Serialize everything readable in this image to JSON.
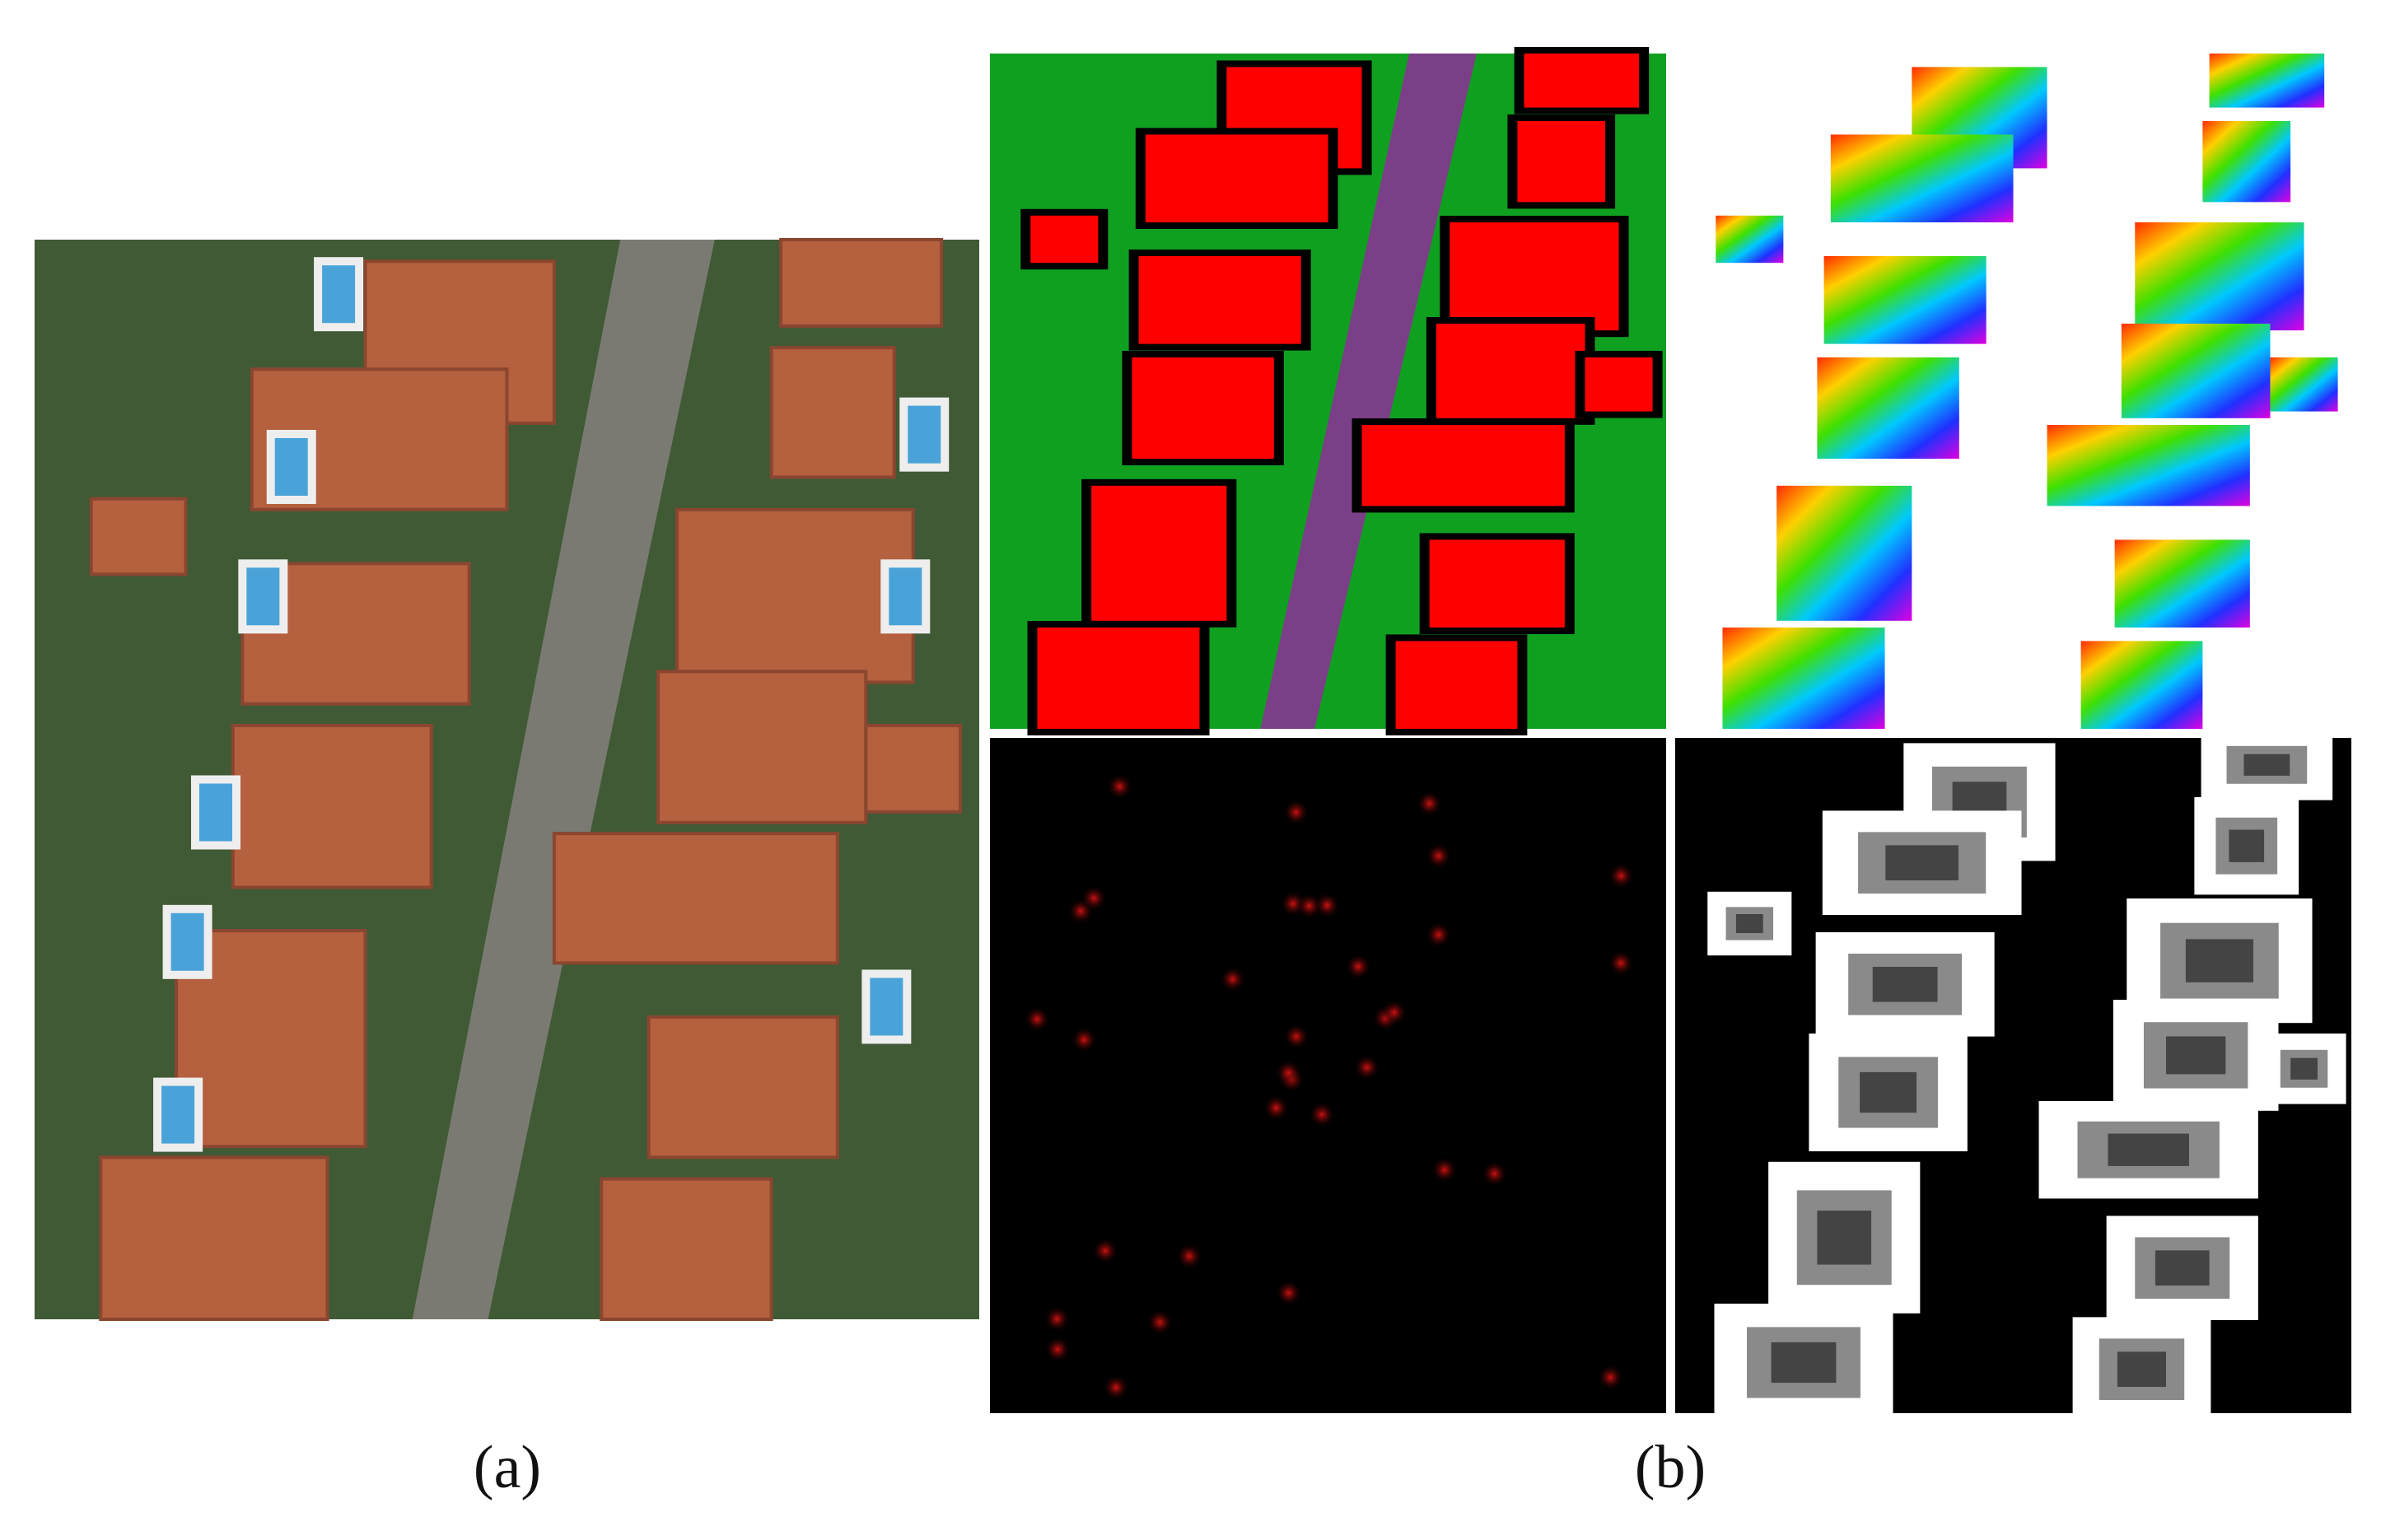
{
  "figure": {
    "labels": [
      "(a)",
      "(b)"
    ]
  }
}
